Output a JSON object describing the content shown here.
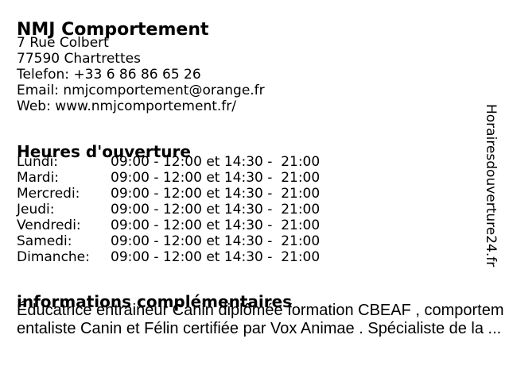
{
  "page": {
    "background": "#ffffff",
    "text_color": "#000000"
  },
  "business": {
    "name": "NMJ Comportement",
    "address": {
      "street": "7 Rue Colbert",
      "city": "77590 Chartrettes"
    },
    "contact": {
      "phone_label": "Telefon:",
      "phone_value": "+33 6 86 86 65 26",
      "email_label": "Email:",
      "email_value": "nmjcomportement@orange.fr",
      "web_label": "Web:",
      "web_value": "www.nmjcomportement.fr/"
    }
  },
  "opening_hours": {
    "heading": "Heures d'ouverture",
    "rows": [
      {
        "day": "Lundi:",
        "hours": "09:00 - 12:00 et 14:30 -  21:00"
      },
      {
        "day": "Mardi:",
        "hours": "09:00 - 12:00 et 14:30 -  21:00"
      },
      {
        "day": "Mercredi:",
        "hours": "09:00 - 12:00 et 14:30 -  21:00"
      },
      {
        "day": "Jeudi:",
        "hours": "09:00 - 12:00 et 14:30 -  21:00"
      },
      {
        "day": "Vendredi:",
        "hours": "09:00 - 12:00 et 14:30 -  21:00"
      },
      {
        "day": "Samedi:",
        "hours": "09:00 - 12:00 et 14:30 -  21:00"
      },
      {
        "day": "Dimanche:",
        "hours": "09:00 - 12:00 et 14:30 -  21:00"
      }
    ]
  },
  "additional_info": {
    "heading": "informations complémentaires",
    "line1": "Éducatrice entraineur Canin diplômée formation CBEAF , comportem",
    "line2": "entaliste Canin et Félin certifiée par Vox Animae . Spécialiste de la ..."
  },
  "watermark": {
    "text": "Horairesdouverture24.fr"
  }
}
